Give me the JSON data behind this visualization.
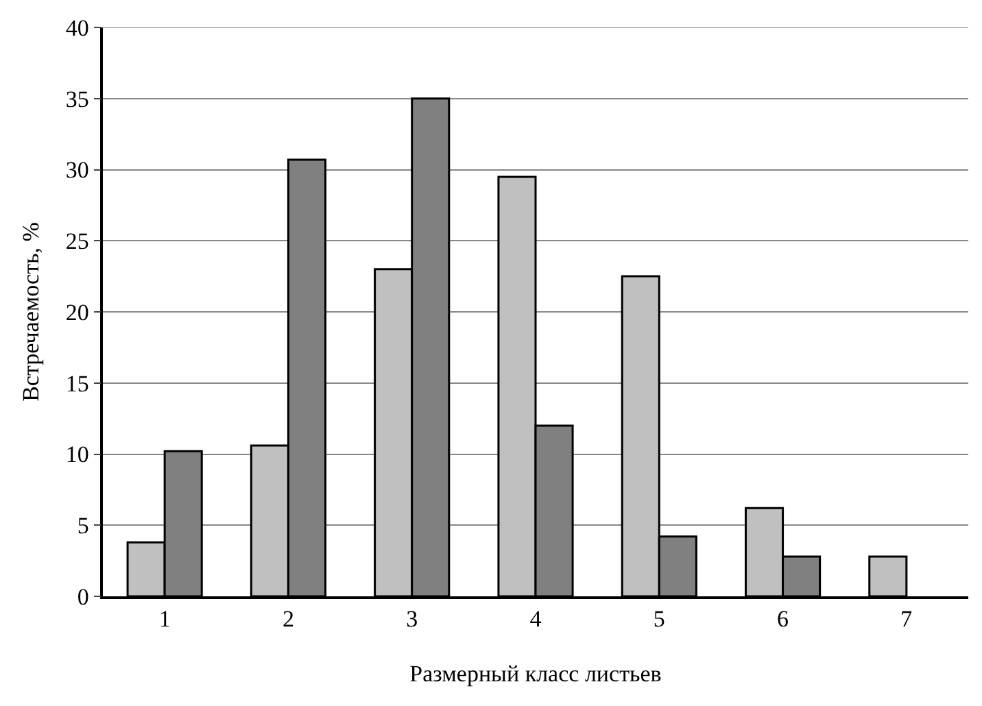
{
  "chart_data": {
    "type": "bar",
    "xlabel": "Размерный класс листьев",
    "ylabel": "Встречаемость, %",
    "categories": [
      "1",
      "2",
      "3",
      "4",
      "5",
      "6",
      "7"
    ],
    "series": [
      {
        "color": "#c0c0c0",
        "values": [
          3.8,
          10.6,
          23.0,
          29.5,
          22.5,
          6.2,
          2.8
        ]
      },
      {
        "color": "#808080",
        "values": [
          10.2,
          30.7,
          35.0,
          12.0,
          4.2,
          2.8,
          null
        ]
      }
    ],
    "ylim": [
      0,
      40
    ],
    "yticks": [
      0,
      5,
      10,
      15,
      20,
      25,
      30,
      35,
      40
    ],
    "grid": "y"
  }
}
